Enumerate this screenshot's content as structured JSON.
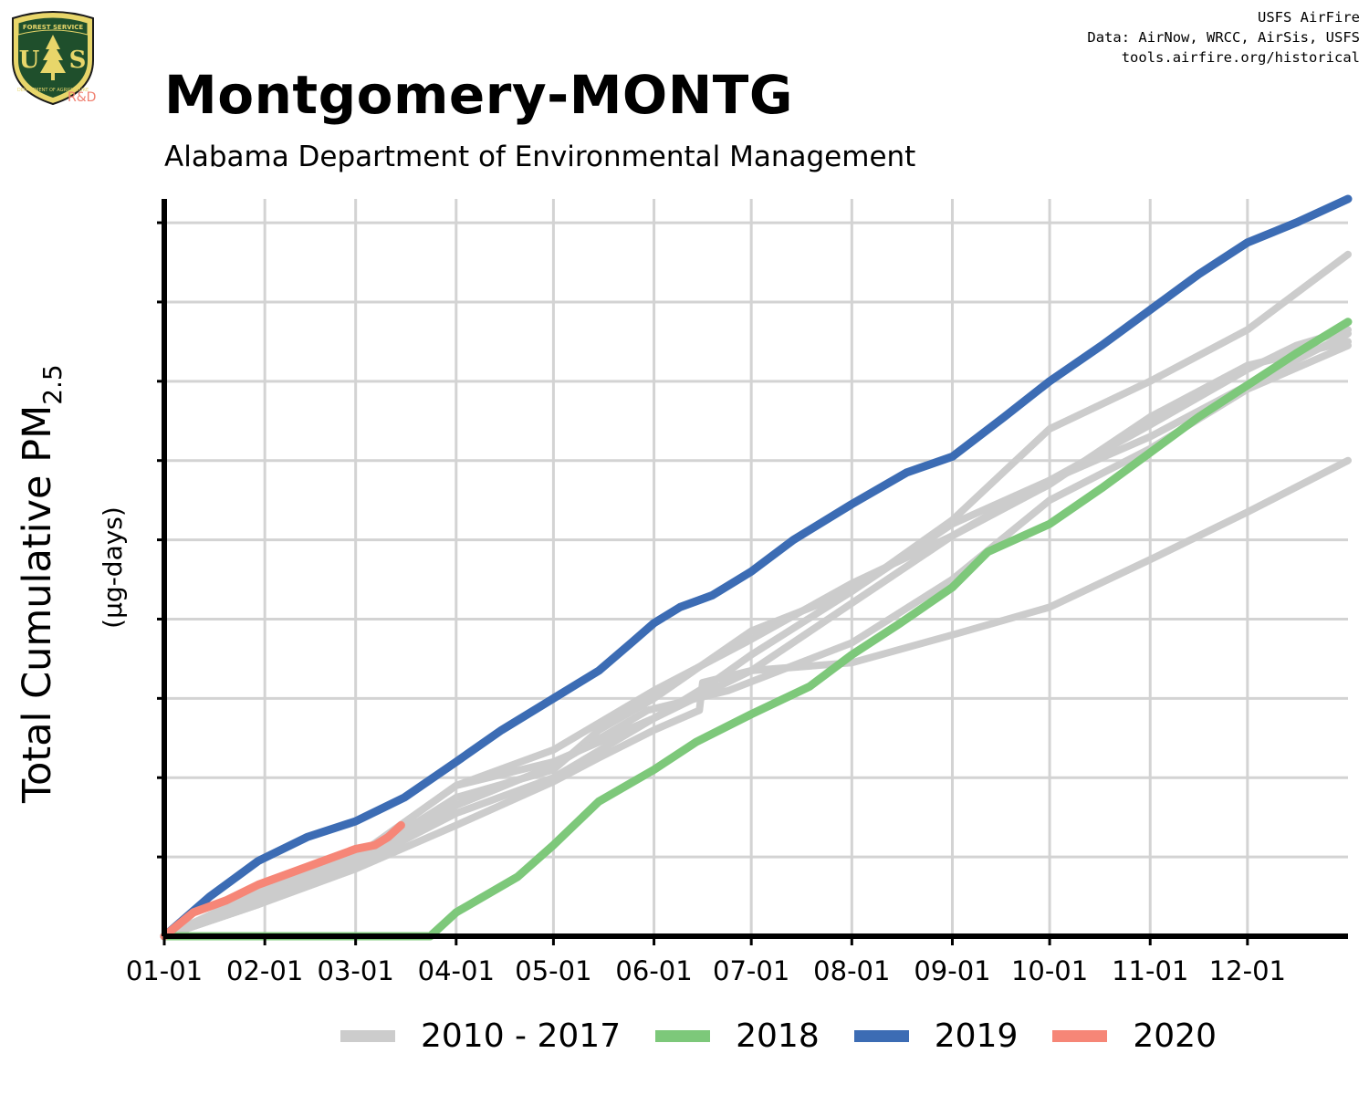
{
  "header": {
    "title": "Montgomery-MONTG",
    "subtitle": "Alabama Department of Environmental Management",
    "credits": [
      "USFS AirFire",
      "Data: AirNow, WRCC, AirSis, USFS",
      "tools.airfire.org/historical"
    ],
    "logo_text": {
      "top": "FOREST SERVICE",
      "initials": "US",
      "bottom": "DEPARTMENT OF AGRICULTURE",
      "badge": "R&D"
    }
  },
  "colors": {
    "years_2010_2017": "#cccccc",
    "year_2018": "#7dc87a",
    "year_2019": "#3c6cb4",
    "year_2020": "#f68677",
    "grid": "#d3d3d3",
    "axis": "#000000"
  },
  "chart_data": {
    "type": "line",
    "title": "Montgomery-MONTG",
    "subtitle": "Alabama Department of Environmental Management",
    "xlabel": "",
    "ylabel": "Total Cumulative PM2.5",
    "ylabel_main": "Total Cumulative PM",
    "ylabel_sub": "2.5",
    "ylabel_unit": "(µg-days)",
    "x_unit": "day of year",
    "xlim": [
      1,
      366
    ],
    "ylim": [
      0,
      9.3
    ],
    "y_tick_labels": "none",
    "x_ticks": [
      {
        "day": 1,
        "label": "01-01"
      },
      {
        "day": 32,
        "label": "02-01"
      },
      {
        "day": 60,
        "label": "03-01"
      },
      {
        "day": 91,
        "label": "04-01"
      },
      {
        "day": 121,
        "label": "05-01"
      },
      {
        "day": 152,
        "label": "06-01"
      },
      {
        "day": 182,
        "label": "07-01"
      },
      {
        "day": 213,
        "label": "08-01"
      },
      {
        "day": 244,
        "label": "09-01"
      },
      {
        "day": 274,
        "label": "10-01"
      },
      {
        "day": 305,
        "label": "11-01"
      },
      {
        "day": 335,
        "label": "12-01"
      }
    ],
    "y_gridlines": [
      0,
      1,
      2,
      3,
      4,
      5,
      6,
      7,
      8,
      9
    ],
    "grid": true,
    "legend_position": "bottom",
    "legend": [
      "2010 - 2017",
      "2018",
      "2019",
      "2020"
    ],
    "series": [
      {
        "group": "2010 - 2017",
        "color": "#cccccc",
        "x": [
          1,
          30,
          60,
          91,
          121,
          135,
          152,
          182,
          213,
          244,
          274,
          305,
          335,
          350,
          366
        ],
        "y": [
          0,
          0.45,
          0.95,
          1.75,
          2.1,
          2.6,
          3.0,
          3.85,
          4.35,
          5.2,
          5.75,
          6.45,
          7.15,
          7.45,
          7.65
        ]
      },
      {
        "group": "2010 - 2017",
        "color": "#cccccc",
        "x": [
          1,
          30,
          60,
          91,
          121,
          152,
          180,
          213,
          244,
          274,
          305,
          335,
          366
        ],
        "y": [
          0,
          0.5,
          1.0,
          1.9,
          2.35,
          3.1,
          3.7,
          4.45,
          5.05,
          5.75,
          6.3,
          6.95,
          7.6
        ]
      },
      {
        "group": "2010 - 2017",
        "color": "#cccccc",
        "x": [
          1,
          30,
          60,
          91,
          121,
          150,
          165,
          175,
          213,
          244,
          274,
          305,
          335,
          366
        ],
        "y": [
          0,
          0.4,
          1.0,
          1.65,
          2.15,
          2.85,
          3.0,
          3.1,
          3.7,
          4.5,
          5.5,
          6.15,
          6.9,
          7.45
        ]
      },
      {
        "group": "2010 - 2017",
        "color": "#cccccc",
        "x": [
          1,
          30,
          60,
          91,
          121,
          152,
          170,
          182,
          213,
          244,
          274,
          305,
          335,
          366
        ],
        "y": [
          0,
          0.55,
          1.0,
          1.9,
          2.2,
          2.75,
          3.2,
          3.55,
          4.35,
          5.25,
          6.4,
          7.0,
          7.65,
          8.6
        ]
      },
      {
        "group": "2010 - 2017",
        "color": "#cccccc",
        "x": [
          1,
          30,
          60,
          91,
          121,
          135,
          152,
          166,
          167,
          182,
          213,
          244,
          274,
          305,
          335,
          366
        ],
        "y": [
          0,
          0.4,
          0.85,
          1.4,
          1.95,
          2.25,
          2.6,
          2.85,
          3.2,
          3.35,
          4.2,
          5.05,
          5.7,
          6.55,
          7.2,
          7.5
        ]
      },
      {
        "group": "2010 - 2017",
        "color": "#cccccc",
        "x": [
          1,
          30,
          60,
          91,
          121,
          152,
          182,
          213,
          244,
          274,
          305,
          335,
          366
        ],
        "y": [
          0,
          0.4,
          0.9,
          1.55,
          2.0,
          2.75,
          3.35,
          3.45,
          3.8,
          4.15,
          4.75,
          5.35,
          6.0
        ]
      },
      {
        "group": "2018",
        "color": "#7dc87a",
        "x": [
          1,
          30,
          60,
          83,
          91,
          110,
          121,
          135,
          152,
          165,
          182,
          200,
          213,
          228,
          244,
          255,
          274,
          290,
          305,
          320,
          335,
          350,
          366
        ],
        "y": [
          0,
          0,
          0,
          0,
          0.3,
          0.75,
          1.15,
          1.7,
          2.1,
          2.45,
          2.8,
          3.15,
          3.55,
          3.95,
          4.4,
          4.85,
          5.2,
          5.65,
          6.1,
          6.55,
          6.95,
          7.35,
          7.75
        ]
      },
      {
        "group": "2019",
        "color": "#3c6cb4",
        "x": [
          1,
          15,
          30,
          45,
          60,
          75,
          91,
          105,
          121,
          135,
          145,
          152,
          160,
          170,
          182,
          195,
          213,
          230,
          244,
          260,
          274,
          290,
          305,
          320,
          335,
          350,
          366
        ],
        "y": [
          0,
          0.5,
          0.95,
          1.25,
          1.45,
          1.75,
          2.2,
          2.6,
          3.0,
          3.35,
          3.7,
          3.95,
          4.15,
          4.3,
          4.6,
          5.0,
          5.45,
          5.85,
          6.05,
          6.55,
          7.0,
          7.45,
          7.9,
          8.35,
          8.75,
          9.0,
          9.3
        ]
      },
      {
        "group": "2020",
        "color": "#f68677",
        "x": [
          1,
          10,
          20,
          30,
          40,
          50,
          60,
          66,
          70,
          74
        ],
        "y": [
          0,
          0.3,
          0.45,
          0.65,
          0.8,
          0.95,
          1.1,
          1.15,
          1.25,
          1.4
        ]
      }
    ]
  }
}
